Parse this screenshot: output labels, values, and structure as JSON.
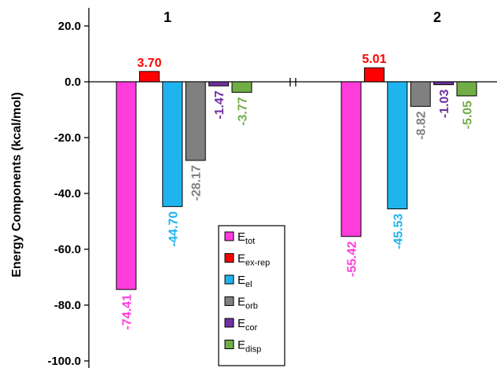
{
  "chart_data": {
    "type": "bar",
    "title": "",
    "xlabel": "",
    "ylabel": "Energy Components (kcal/mol)",
    "ylim": [
      -100,
      20
    ],
    "yticks": [
      20,
      0,
      -20,
      -40,
      -60,
      -80,
      -100
    ],
    "ytick_labels": [
      "20.0",
      "0.0",
      "-20.0",
      "-40.0",
      "-60.0",
      "-80.0",
      "-100.0"
    ],
    "grid": false,
    "legend_position": "bottom-center",
    "categories": [
      "1",
      "2"
    ],
    "series": [
      {
        "key": "tot",
        "base": "E",
        "sub": "tot",
        "color": "#ff3cdc",
        "label_color": "#ff3cdc",
        "values": [
          -74.41,
          -55.42
        ],
        "labels": [
          "-74.41",
          "-55.42"
        ]
      },
      {
        "key": "ex-rep",
        "base": "E",
        "sub": "ex-rep",
        "color": "#ff0000",
        "label_color": "#ff0000",
        "values": [
          3.7,
          5.01
        ],
        "labels": [
          "3.70",
          "5.01"
        ]
      },
      {
        "key": "el",
        "base": "E",
        "sub": "el",
        "color": "#1fb4ee",
        "label_color": "#1fb4ee",
        "values": [
          -44.7,
          -45.53
        ],
        "labels": [
          "-44.70",
          "-45.53"
        ]
      },
      {
        "key": "orb",
        "base": "E",
        "sub": "orb",
        "color": "#808080",
        "label_color": "#808080",
        "values": [
          -28.17,
          -8.82
        ],
        "labels": [
          "-28.17",
          "-8.82"
        ]
      },
      {
        "key": "cor",
        "base": "E",
        "sub": "cor",
        "color": "#7030a0",
        "label_color": "#7030a0",
        "values": [
          -1.47,
          -1.03
        ],
        "labels": [
          "-1.47",
          "-1.03"
        ]
      },
      {
        "key": "disp",
        "base": "E",
        "sub": "disp",
        "color": "#70ad47",
        "label_color": "#70ad47",
        "values": [
          -3.77,
          -5.05
        ],
        "labels": [
          "-3.77",
          "-5.05"
        ]
      }
    ]
  }
}
